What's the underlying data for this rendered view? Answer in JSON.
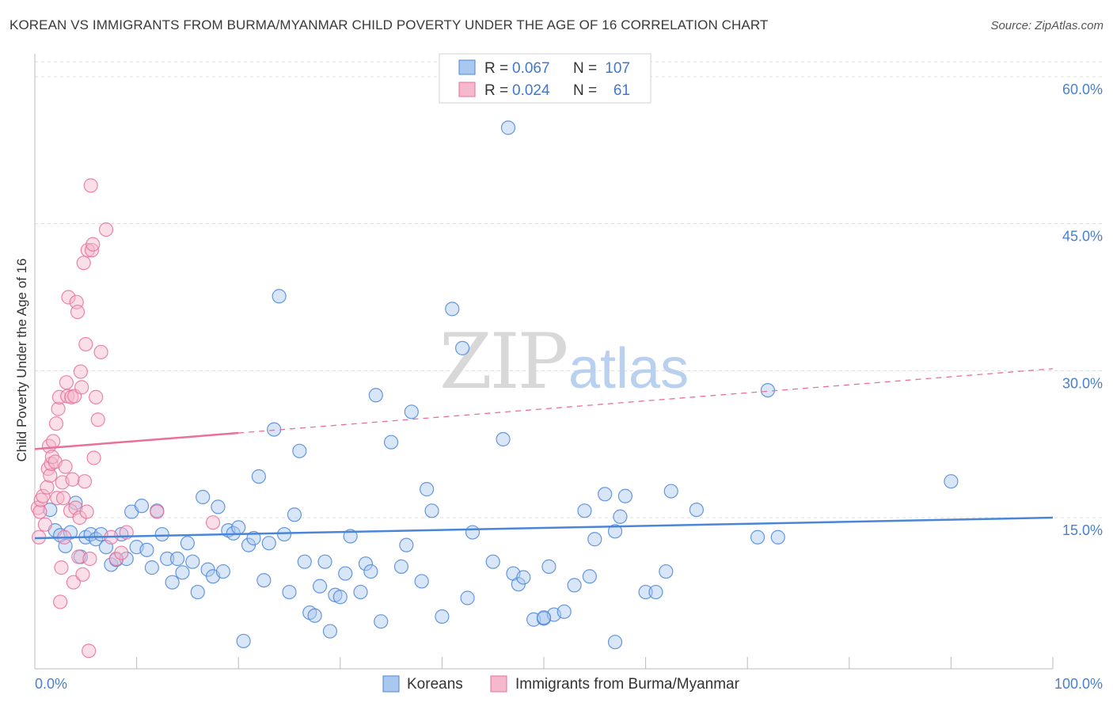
{
  "title": "KOREAN VS IMMIGRANTS FROM BURMA/MYANMAR CHILD POVERTY UNDER THE AGE OF 16 CORRELATION CHART",
  "source": "Source: ZipAtlas.com",
  "watermark": {
    "zip": "ZIP",
    "atlas": "atlas"
  },
  "colors": {
    "blue": "#4a86d8",
    "blue_fill": "#a9c8f0",
    "pink": "#e8709a",
    "pink_fill": "#f5b8cc",
    "axis_text": "#4a7fd0"
  },
  "legend": {
    "r_label": "R =",
    "n_label": "N =",
    "series1": {
      "r": "0.067",
      "n": "107"
    },
    "series2": {
      "r": "0.024",
      "n": "61"
    }
  },
  "chart_data": {
    "type": "scatter",
    "title": "KOREAN VS IMMIGRANTS FROM BURMA/MYANMAR CHILD POVERTY UNDER THE AGE OF 16 CORRELATION CHART",
    "xlabel": "",
    "ylabel": "Child Poverty Under the Age of 16",
    "xlim": [
      0,
      100
    ],
    "ylim": [
      0,
      60
    ],
    "x_tick_labels": [
      {
        "value": 0,
        "label": "0.0%"
      },
      {
        "value": 100,
        "label": "100.0%"
      }
    ],
    "y_tick_labels": [
      {
        "value": 15,
        "label": "15.0%"
      },
      {
        "value": 30,
        "label": "30.0%"
      },
      {
        "value": 45,
        "label": "45.0%"
      },
      {
        "value": 60,
        "label": "60.0%"
      }
    ],
    "grid": true,
    "series": [
      {
        "name": "Koreans",
        "color": "#4a86d8",
        "r": 0.067,
        "n": 107,
        "trend": {
          "x0": 0,
          "y0": 12.9,
          "x1": 100,
          "y1": 15.0,
          "dashed_from": null
        },
        "points": [
          [
            1.5,
            15.8
          ],
          [
            2,
            13.7
          ],
          [
            2.5,
            13.2
          ],
          [
            3,
            12.1
          ],
          [
            3.5,
            13.5
          ],
          [
            4,
            16.5
          ],
          [
            4.5,
            11.0
          ],
          [
            5,
            13.0
          ],
          [
            5.5,
            13.3
          ],
          [
            6,
            12.8
          ],
          [
            6.5,
            13.3
          ],
          [
            7,
            12.0
          ],
          [
            7.5,
            10.2
          ],
          [
            8,
            10.7
          ],
          [
            8.5,
            13.3
          ],
          [
            9,
            10.8
          ],
          [
            9.5,
            15.6
          ],
          [
            10,
            12.0
          ],
          [
            10.5,
            16.2
          ],
          [
            11,
            11.7
          ],
          [
            11.5,
            9.9
          ],
          [
            12,
            15.7
          ],
          [
            12.5,
            13.3
          ],
          [
            13,
            10.8
          ],
          [
            13.5,
            8.4
          ],
          [
            14,
            10.8
          ],
          [
            14.5,
            9.4
          ],
          [
            15,
            12.4
          ],
          [
            15.5,
            10.5
          ],
          [
            16,
            7.4
          ],
          [
            16.5,
            17.1
          ],
          [
            17,
            9.7
          ],
          [
            17.5,
            9.0
          ],
          [
            18,
            16.1
          ],
          [
            18.5,
            9.5
          ],
          [
            19,
            13.7
          ],
          [
            19.5,
            13.4
          ],
          [
            20,
            14.0
          ],
          [
            20.5,
            2.4
          ],
          [
            21,
            12.2
          ],
          [
            21.5,
            12.9
          ],
          [
            22,
            19.2
          ],
          [
            22.5,
            8.6
          ],
          [
            23,
            12.4
          ],
          [
            23.5,
            24.0
          ],
          [
            24,
            37.6
          ],
          [
            24.5,
            13.3
          ],
          [
            25,
            7.4
          ],
          [
            25.5,
            15.3
          ],
          [
            26,
            21.8
          ],
          [
            26.5,
            10.5
          ],
          [
            27,
            5.3
          ],
          [
            27.5,
            5.0
          ],
          [
            28,
            8.0
          ],
          [
            28.5,
            10.5
          ],
          [
            29,
            3.4
          ],
          [
            29.5,
            7.1
          ],
          [
            30,
            6.9
          ],
          [
            30.5,
            9.3
          ],
          [
            31,
            13.1
          ],
          [
            32,
            7.4
          ],
          [
            32.5,
            10.3
          ],
          [
            33,
            9.5
          ],
          [
            33.5,
            27.5
          ],
          [
            34,
            4.4
          ],
          [
            35,
            22.7
          ],
          [
            36,
            10.0
          ],
          [
            36.5,
            12.2
          ],
          [
            37,
            25.8
          ],
          [
            38,
            8.5
          ],
          [
            38.5,
            17.9
          ],
          [
            39,
            15.7
          ],
          [
            40,
            4.9
          ],
          [
            41,
            36.3
          ],
          [
            42,
            32.3
          ],
          [
            42.5,
            6.8
          ],
          [
            43,
            13.5
          ],
          [
            45,
            10.5
          ],
          [
            46,
            23.0
          ],
          [
            46.5,
            54.8
          ],
          [
            47,
            9.3
          ],
          [
            47.5,
            8.2
          ],
          [
            49,
            4.6
          ],
          [
            50,
            4.7
          ],
          [
            50.5,
            10.0
          ],
          [
            51,
            5.1
          ],
          [
            52,
            5.4
          ],
          [
            53,
            8.1
          ],
          [
            54,
            15.7
          ],
          [
            54.5,
            9.0
          ],
          [
            55,
            12.8
          ],
          [
            56,
            17.4
          ],
          [
            57,
            13.6
          ],
          [
            57.5,
            15.1
          ],
          [
            58,
            17.2
          ],
          [
            60,
            7.4
          ],
          [
            61,
            7.4
          ],
          [
            62,
            9.5
          ],
          [
            62.5,
            17.7
          ],
          [
            65,
            15.8
          ],
          [
            57,
            2.3
          ],
          [
            71,
            13.0
          ],
          [
            73,
            13.0
          ],
          [
            72,
            28.0
          ],
          [
            90,
            18.7
          ],
          [
            50,
            4.8
          ],
          [
            48,
            8.9
          ]
        ]
      },
      {
        "name": "Immigrants from Burma/Myanmar",
        "color": "#e8709a",
        "r": 0.024,
        "n": 61,
        "trend": {
          "x0": 0,
          "y0": 22.0,
          "x1": 100,
          "y1": 30.2,
          "solid_until_x": 20
        },
        "points": [
          [
            0.3,
            16.0
          ],
          [
            0.5,
            15.6
          ],
          [
            0.6,
            16.8
          ],
          [
            0.8,
            17.2
          ],
          [
            1.0,
            14.3
          ],
          [
            1.2,
            18.1
          ],
          [
            1.3,
            20.0
          ],
          [
            1.4,
            22.3
          ],
          [
            1.5,
            19.3
          ],
          [
            1.6,
            20.5
          ],
          [
            1.7,
            21.2
          ],
          [
            1.8,
            22.8
          ],
          [
            2.0,
            20.7
          ],
          [
            2.1,
            24.6
          ],
          [
            2.2,
            17.0
          ],
          [
            2.3,
            26.1
          ],
          [
            2.4,
            27.3
          ],
          [
            2.5,
            6.4
          ],
          [
            2.6,
            9.9
          ],
          [
            2.7,
            18.6
          ],
          [
            2.8,
            17.0
          ],
          [
            2.9,
            13.0
          ],
          [
            3.0,
            20.2
          ],
          [
            3.1,
            28.8
          ],
          [
            3.2,
            27.4
          ],
          [
            3.3,
            37.5
          ],
          [
            3.5,
            15.7
          ],
          [
            3.6,
            27.3
          ],
          [
            3.7,
            18.9
          ],
          [
            3.8,
            8.4
          ],
          [
            3.9,
            27.4
          ],
          [
            4.0,
            16.0
          ],
          [
            4.1,
            37.0
          ],
          [
            4.2,
            36.0
          ],
          [
            4.3,
            11.0
          ],
          [
            4.4,
            15.0
          ],
          [
            4.5,
            29.9
          ],
          [
            4.6,
            28.3
          ],
          [
            4.7,
            9.2
          ],
          [
            4.8,
            41.0
          ],
          [
            4.9,
            18.7
          ],
          [
            5.0,
            32.7
          ],
          [
            5.1,
            15.6
          ],
          [
            5.2,
            42.3
          ],
          [
            5.3,
            1.4
          ],
          [
            5.4,
            10.8
          ],
          [
            5.5,
            48.9
          ],
          [
            5.6,
            42.3
          ],
          [
            5.7,
            42.9
          ],
          [
            5.8,
            21.1
          ],
          [
            6.0,
            27.3
          ],
          [
            6.2,
            25.0
          ],
          [
            6.5,
            31.9
          ],
          [
            7.0,
            44.4
          ],
          [
            7.5,
            13.0
          ],
          [
            8.0,
            10.8
          ],
          [
            8.5,
            11.4
          ],
          [
            9.0,
            13.5
          ],
          [
            12.0,
            15.6
          ],
          [
            17.5,
            14.5
          ],
          [
            0.4,
            13.0
          ]
        ]
      }
    ]
  },
  "bottom_legend": [
    {
      "label": "Koreans"
    },
    {
      "label": "Immigrants from Burma/Myanmar"
    }
  ]
}
